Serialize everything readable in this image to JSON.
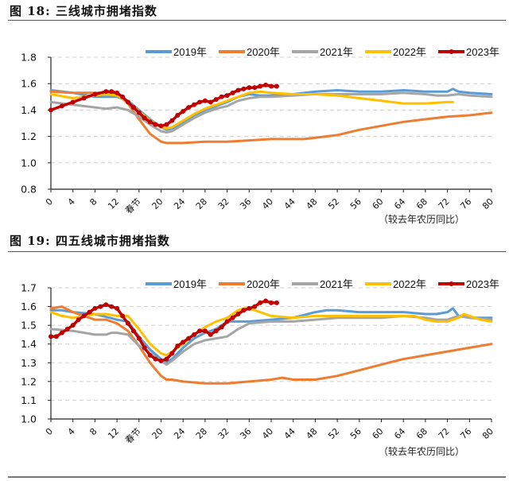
{
  "figures": [
    {
      "title": "图  18:  三线城市拥堵指数",
      "chart_data": {
        "type": "line",
        "title": "三线城市拥堵指数",
        "xlabel": "（较去年农历同比）",
        "ylabel": "",
        "ylim": [
          0.8,
          1.8
        ],
        "yticks": [
          0.8,
          1.0,
          1.2,
          1.4,
          1.6,
          1.8
        ],
        "ytick_labels": [
          "0.8",
          "1.0",
          "1.2",
          "1.4",
          "1.6",
          "1.8"
        ],
        "xlim": [
          0,
          80
        ],
        "xticks": [
          0,
          4,
          8,
          12,
          16,
          20,
          24,
          28,
          32,
          36,
          40,
          44,
          48,
          52,
          56,
          60,
          64,
          68,
          72,
          76,
          80
        ],
        "xtick_labels": [
          "0",
          "4",
          "8",
          "12",
          "春节",
          "20",
          "24",
          "28",
          "32",
          "36",
          "40",
          "44",
          "48",
          "52",
          "56",
          "60",
          "64",
          "68",
          "72",
          "76",
          "80"
        ],
        "grid": "horizontal-dashed",
        "legend_position": "top-right",
        "series": [
          {
            "name": "2019年",
            "color": "#5B9BD5",
            "markers": false,
            "x": [
              0,
              4,
              8,
              12,
              14,
              16,
              18,
              20,
              21,
              22,
              24,
              26,
              28,
              30,
              32,
              34,
              36,
              38,
              40,
              42,
              44,
              48,
              52,
              56,
              60,
              64,
              68,
              71,
              72,
              73,
              74,
              76,
              80
            ],
            "y": [
              1.55,
              1.53,
              1.5,
              1.5,
              1.47,
              1.4,
              1.33,
              1.27,
              1.25,
              1.26,
              1.31,
              1.36,
              1.4,
              1.43,
              1.46,
              1.5,
              1.52,
              1.51,
              1.51,
              1.52,
              1.52,
              1.54,
              1.55,
              1.54,
              1.54,
              1.55,
              1.54,
              1.54,
              1.54,
              1.56,
              1.54,
              1.53,
              1.52
            ]
          },
          {
            "name": "2020年",
            "color": "#ED7D31",
            "markers": false,
            "x": [
              0,
              4,
              8,
              10,
              12,
              14,
              16,
              18,
              20,
              21,
              22,
              24,
              28,
              32,
              36,
              40,
              44,
              46,
              48,
              52,
              56,
              60,
              64,
              68,
              72,
              76,
              80
            ],
            "y": [
              1.54,
              1.53,
              1.53,
              1.53,
              1.52,
              1.45,
              1.33,
              1.22,
              1.16,
              1.15,
              1.15,
              1.15,
              1.16,
              1.16,
              1.17,
              1.18,
              1.18,
              1.18,
              1.19,
              1.21,
              1.25,
              1.28,
              1.31,
              1.33,
              1.35,
              1.36,
              1.38
            ]
          },
          {
            "name": "2021年",
            "color": "#A5A5A5",
            "markers": false,
            "x": [
              0,
              4,
              8,
              10,
              12,
              14,
              16,
              18,
              20,
              21,
              22,
              24,
              26,
              28,
              30,
              32,
              34,
              36,
              38,
              40,
              44,
              48,
              52,
              56,
              60,
              64,
              68,
              70,
              72,
              74,
              76,
              80
            ],
            "y": [
              1.46,
              1.44,
              1.42,
              1.41,
              1.42,
              1.4,
              1.35,
              1.29,
              1.24,
              1.23,
              1.24,
              1.29,
              1.34,
              1.38,
              1.41,
              1.43,
              1.47,
              1.49,
              1.5,
              1.5,
              1.51,
              1.52,
              1.52,
              1.52,
              1.52,
              1.53,
              1.52,
              1.51,
              1.51,
              1.52,
              1.51,
              1.5
            ]
          },
          {
            "name": "2022年",
            "color": "#FFC000",
            "markers": false,
            "x": [
              0,
              4,
              8,
              10,
              12,
              14,
              16,
              18,
              20,
              21,
              22,
              24,
              26,
              28,
              30,
              32,
              34,
              36,
              38,
              40,
              44,
              48,
              52,
              56,
              60,
              64,
              68,
              72,
              73
            ],
            "y": [
              1.52,
              1.49,
              1.51,
              1.52,
              1.51,
              1.46,
              1.39,
              1.32,
              1.27,
              1.26,
              1.27,
              1.32,
              1.37,
              1.41,
              1.44,
              1.47,
              1.5,
              1.53,
              1.54,
              1.53,
              1.52,
              1.52,
              1.51,
              1.49,
              1.47,
              1.45,
              1.45,
              1.46,
              1.46
            ]
          },
          {
            "name": "2023年",
            "color": "#C00000",
            "markers": true,
            "x": [
              0,
              2,
              4,
              6,
              8,
              10,
              11,
              12,
              13,
              14,
              15,
              16,
              17,
              18,
              19,
              20,
              21,
              22,
              23,
              24,
              25,
              26,
              27,
              28,
              29,
              30,
              31,
              32,
              33,
              34,
              35,
              36,
              37,
              38,
              39,
              40,
              41
            ],
            "y": [
              1.4,
              1.43,
              1.46,
              1.49,
              1.52,
              1.54,
              1.54,
              1.53,
              1.5,
              1.46,
              1.42,
              1.38,
              1.34,
              1.31,
              1.29,
              1.28,
              1.29,
              1.32,
              1.36,
              1.39,
              1.42,
              1.44,
              1.46,
              1.47,
              1.46,
              1.48,
              1.5,
              1.51,
              1.53,
              1.55,
              1.56,
              1.57,
              1.57,
              1.58,
              1.59,
              1.58,
              1.58
            ]
          }
        ]
      }
    },
    {
      "title": "图  19:  四五线城市拥堵指数",
      "chart_data": {
        "type": "line",
        "title": "四五线城市拥堵指数",
        "xlabel": "（较去年农历同比）",
        "ylabel": "",
        "ylim": [
          1.0,
          1.7
        ],
        "yticks": [
          1.0,
          1.1,
          1.2,
          1.3,
          1.4,
          1.5,
          1.6,
          1.7
        ],
        "ytick_labels": [
          "1.0",
          "1.1",
          "1.2",
          "1.3",
          "1.4",
          "1.5",
          "1.6",
          "1.7"
        ],
        "xlim": [
          0,
          80
        ],
        "xticks": [
          0,
          4,
          8,
          12,
          16,
          20,
          24,
          28,
          32,
          36,
          40,
          44,
          48,
          52,
          56,
          60,
          64,
          68,
          72,
          76,
          80
        ],
        "xtick_labels": [
          "0",
          "4",
          "8",
          "12",
          "春节",
          "20",
          "24",
          "28",
          "32",
          "36",
          "40",
          "44",
          "48",
          "52",
          "56",
          "60",
          "64",
          "68",
          "72",
          "76",
          "80"
        ],
        "grid": "horizontal-dashed",
        "legend_position": "top-right",
        "series": [
          {
            "name": "2019年",
            "color": "#5B9BD5",
            "markers": false,
            "x": [
              0,
              2,
              4,
              8,
              12,
              14,
              16,
              18,
              20,
              21,
              22,
              24,
              26,
              28,
              30,
              32,
              36,
              40,
              44,
              48,
              50,
              52,
              56,
              60,
              64,
              68,
              70,
              72,
              73,
              74,
              76,
              80
            ],
            "y": [
              1.58,
              1.58,
              1.57,
              1.56,
              1.53,
              1.52,
              1.44,
              1.37,
              1.32,
              1.3,
              1.32,
              1.38,
              1.43,
              1.46,
              1.48,
              1.52,
              1.52,
              1.53,
              1.54,
              1.57,
              1.58,
              1.58,
              1.57,
              1.57,
              1.57,
              1.56,
              1.56,
              1.57,
              1.59,
              1.55,
              1.54,
              1.54
            ]
          },
          {
            "name": "2020年",
            "color": "#ED7D31",
            "markers": false,
            "x": [
              0,
              2,
              4,
              6,
              8,
              10,
              12,
              14,
              16,
              18,
              20,
              21,
              22,
              24,
              28,
              32,
              36,
              40,
              42,
              44,
              48,
              52,
              56,
              60,
              64,
              68,
              72,
              76,
              80
            ],
            "y": [
              1.59,
              1.6,
              1.57,
              1.55,
              1.53,
              1.53,
              1.51,
              1.47,
              1.39,
              1.3,
              1.23,
              1.21,
              1.21,
              1.2,
              1.19,
              1.19,
              1.2,
              1.21,
              1.22,
              1.21,
              1.21,
              1.23,
              1.26,
              1.29,
              1.32,
              1.34,
              1.36,
              1.38,
              1.4
            ]
          },
          {
            "name": "2021年",
            "color": "#A5A5A5",
            "markers": false,
            "x": [
              0,
              4,
              8,
              10,
              11,
              12,
              14,
              16,
              18,
              20,
              21,
              22,
              24,
              26,
              28,
              30,
              32,
              34,
              36,
              40,
              44,
              48,
              52,
              56,
              60,
              64,
              68,
              70,
              72,
              74,
              76,
              80
            ],
            "y": [
              1.48,
              1.47,
              1.45,
              1.45,
              1.46,
              1.46,
              1.45,
              1.39,
              1.35,
              1.31,
              1.29,
              1.31,
              1.36,
              1.4,
              1.42,
              1.43,
              1.44,
              1.48,
              1.51,
              1.52,
              1.52,
              1.53,
              1.54,
              1.54,
              1.54,
              1.55,
              1.54,
              1.53,
              1.53,
              1.55,
              1.54,
              1.53
            ]
          },
          {
            "name": "2022年",
            "color": "#FFC000",
            "markers": false,
            "x": [
              0,
              2,
              4,
              6,
              8,
              10,
              12,
              14,
              16,
              18,
              20,
              21,
              22,
              24,
              26,
              28,
              30,
              32,
              34,
              35,
              36,
              38,
              40,
              44,
              48,
              52,
              56,
              60,
              64,
              66,
              68,
              70,
              72,
              74,
              75,
              76,
              78,
              80
            ],
            "y": [
              1.57,
              1.55,
              1.54,
              1.55,
              1.56,
              1.56,
              1.55,
              1.55,
              1.48,
              1.4,
              1.35,
              1.34,
              1.36,
              1.4,
              1.45,
              1.49,
              1.52,
              1.54,
              1.58,
              1.59,
              1.59,
              1.57,
              1.55,
              1.54,
              1.55,
              1.55,
              1.55,
              1.55,
              1.55,
              1.55,
              1.53,
              1.52,
              1.52,
              1.54,
              1.56,
              1.55,
              1.53,
              1.52
            ]
          },
          {
            "name": "2023年",
            "color": "#C00000",
            "markers": true,
            "x": [
              0,
              1,
              2,
              3,
              4,
              5,
              6,
              7,
              8,
              9,
              10,
              11,
              12,
              13,
              14,
              15,
              16,
              17,
              18,
              19,
              20,
              21,
              22,
              23,
              24,
              25,
              26,
              27,
              28,
              29,
              30,
              31,
              32,
              33,
              34,
              35,
              36,
              37,
              38,
              39,
              40,
              41
            ],
            "y": [
              1.44,
              1.44,
              1.46,
              1.48,
              1.5,
              1.53,
              1.55,
              1.57,
              1.59,
              1.6,
              1.61,
              1.6,
              1.59,
              1.55,
              1.51,
              1.47,
              1.43,
              1.38,
              1.34,
              1.32,
              1.31,
              1.32,
              1.35,
              1.39,
              1.41,
              1.43,
              1.45,
              1.47,
              1.47,
              1.45,
              1.47,
              1.49,
              1.52,
              1.54,
              1.56,
              1.58,
              1.59,
              1.6,
              1.62,
              1.63,
              1.62,
              1.62
            ]
          }
        ]
      }
    }
  ]
}
